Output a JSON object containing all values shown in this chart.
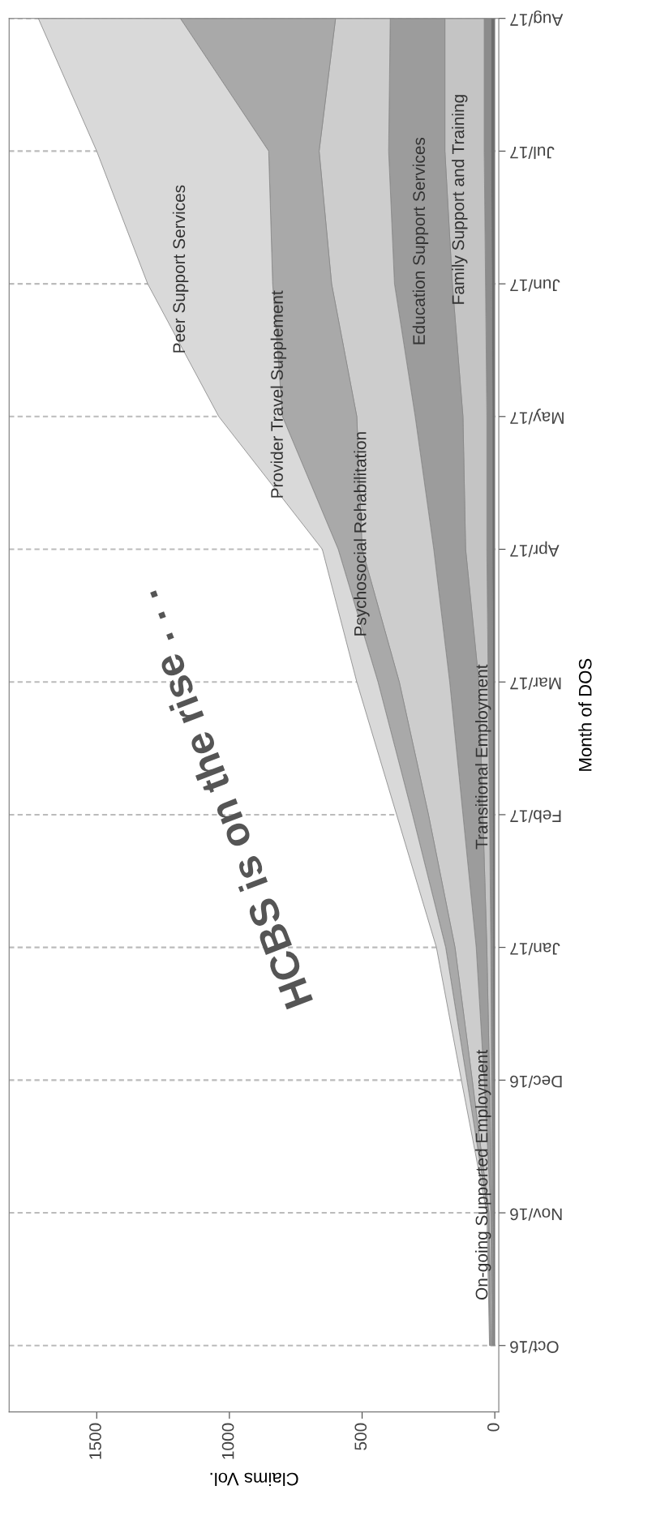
{
  "chart_data": {
    "type": "area",
    "stacked": true,
    "orientation": "horizontal",
    "categories": [
      "Aug/17",
      "Jul/17",
      "Jun/17",
      "May/17",
      "Apr/17",
      "Mar/17",
      "Feb/17",
      "Jan/17",
      "Dec/16",
      "Nov/16",
      "Oct/16"
    ],
    "series": [
      {
        "name": "On-going Supported Employment",
        "color": "#6e6e6e",
        "values": [
          15,
          15,
          12,
          10,
          10,
          8,
          8,
          7,
          6,
          5,
          4
        ]
      },
      {
        "name": "Transitional Employment",
        "color": "#8c8c8c",
        "values": [
          25,
          25,
          23,
          20,
          20,
          17,
          12,
          8,
          6,
          3,
          2
        ]
      },
      {
        "name": "Family Support and Training",
        "color": "#c4c4c4",
        "values": [
          148,
          148,
          125,
          90,
          80,
          35,
          25,
          15,
          8,
          3,
          2
        ]
      },
      {
        "name": "Education Support Services",
        "color": "#9c9c9c",
        "values": [
          206,
          212,
          218,
          180,
          120,
          110,
          75,
          40,
          20,
          4,
          3
        ]
      },
      {
        "name": "Psychosocial Rehabilitation",
        "color": "#cdcdcd",
        "values": [
          206,
          262,
          237,
          220,
          270,
          190,
          130,
          80,
          45,
          7,
          4
        ]
      },
      {
        "name": "Provider Travel Supplement",
        "color": "#a9a9a9",
        "values": [
          585,
          190,
          222,
          280,
          90,
          80,
          60,
          35,
          20,
          4,
          3
        ]
      },
      {
        "name": "Peer Support Services",
        "color": "#d9d9d9",
        "values": [
          535,
          648,
          471,
          240,
          60,
          80,
          60,
          35,
          21,
          4,
          2
        ]
      }
    ],
    "xlim": [
      1830,
      -15
    ],
    "xticks": [
      0,
      500,
      1000,
      1500
    ],
    "xlabel": "Claims Vol.",
    "ylabel": "Month of DOS",
    "grid": "y",
    "annotations": [
      "HCBS is on the rise . . ."
    ]
  }
}
